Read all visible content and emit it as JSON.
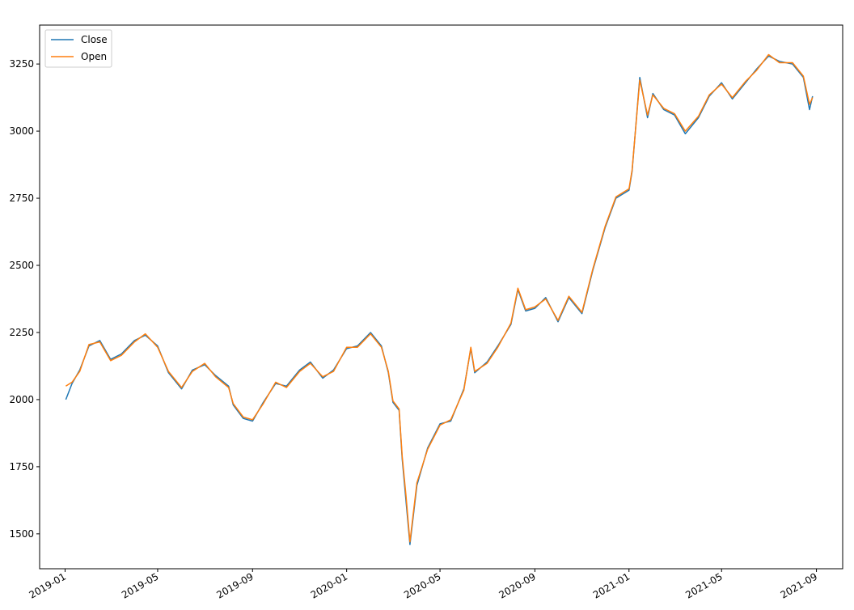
{
  "chart_data": {
    "type": "line",
    "title": "",
    "xlabel": "",
    "ylabel": "",
    "grid": false,
    "legend_position": "top-left",
    "xlim": [
      "2018-11-29",
      "2021-10-05"
    ],
    "ylim": [
      1370,
      3395
    ],
    "x_ticks": [
      "2019-01",
      "2019-05",
      "2019-09",
      "2020-01",
      "2020-05",
      "2020-09",
      "2021-01",
      "2021-05",
      "2021-09"
    ],
    "x_tick_dates": [
      "2019-01-01",
      "2019-05-01",
      "2019-09-01",
      "2020-01-01",
      "2020-05-01",
      "2020-09-01",
      "2021-01-01",
      "2021-05-01",
      "2021-09-01"
    ],
    "y_ticks": [
      1500,
      1750,
      2000,
      2250,
      2500,
      2750,
      3000,
      3250
    ],
    "x": [
      "2019-01-02",
      "2019-01-10",
      "2019-01-20",
      "2019-02-01",
      "2019-02-15",
      "2019-03-01",
      "2019-03-15",
      "2019-04-01",
      "2019-04-15",
      "2019-05-01",
      "2019-05-15",
      "2019-06-01",
      "2019-06-15",
      "2019-07-01",
      "2019-07-15",
      "2019-08-01",
      "2019-08-07",
      "2019-08-20",
      "2019-09-01",
      "2019-09-15",
      "2019-10-01",
      "2019-10-15",
      "2019-11-01",
      "2019-11-15",
      "2019-12-01",
      "2019-12-15",
      "2020-01-01",
      "2020-01-15",
      "2020-02-01",
      "2020-02-15",
      "2020-02-24",
      "2020-03-01",
      "2020-03-09",
      "2020-03-13",
      "2020-03-18",
      "2020-03-23",
      "2020-04-01",
      "2020-04-15",
      "2020-05-01",
      "2020-05-15",
      "2020-06-01",
      "2020-06-10",
      "2020-06-15",
      "2020-07-01",
      "2020-07-15",
      "2020-08-01",
      "2020-08-10",
      "2020-08-20",
      "2020-09-01",
      "2020-09-15",
      "2020-10-01",
      "2020-10-15",
      "2020-11-01",
      "2020-11-15",
      "2020-12-01",
      "2020-12-15",
      "2021-01-01",
      "2021-01-05",
      "2021-01-15",
      "2021-01-25",
      "2021-02-01",
      "2021-02-15",
      "2021-03-01",
      "2021-03-15",
      "2021-04-01",
      "2021-04-15",
      "2021-05-01",
      "2021-05-15",
      "2021-06-01",
      "2021-06-15",
      "2021-07-01",
      "2021-07-15",
      "2021-08-01",
      "2021-08-15",
      "2021-08-23",
      "2021-08-27"
    ],
    "series": [
      {
        "name": "Close",
        "color": "#1f77b4",
        "values": [
          2000,
          2060,
          2110,
          2200,
          2220,
          2150,
          2170,
          2220,
          2240,
          2200,
          2100,
          2040,
          2110,
          2130,
          2090,
          2050,
          1980,
          1930,
          1920,
          1990,
          2060,
          2050,
          2110,
          2140,
          2080,
          2110,
          2190,
          2200,
          2250,
          2200,
          2100,
          1990,
          1960,
          1780,
          1620,
          1460,
          1680,
          1820,
          1910,
          1920,
          2040,
          2190,
          2100,
          2140,
          2200,
          2280,
          2410,
          2330,
          2340,
          2380,
          2290,
          2380,
          2320,
          2480,
          2640,
          2750,
          2780,
          2850,
          3200,
          3050,
          3140,
          3080,
          3060,
          2990,
          3050,
          3130,
          3180,
          3120,
          3180,
          3230,
          3280,
          3260,
          3250,
          3200,
          3080,
          3130
        ]
      },
      {
        "name": "Open",
        "color": "#ff7f0e",
        "values": [
          2050,
          2065,
          2105,
          2205,
          2215,
          2145,
          2165,
          2215,
          2245,
          2195,
          2105,
          2045,
          2105,
          2135,
          2085,
          2045,
          1985,
          1935,
          1925,
          1985,
          2065,
          2045,
          2105,
          2135,
          2085,
          2105,
          2195,
          2195,
          2245,
          2195,
          2105,
          1995,
          1965,
          1790,
          1640,
          1470,
          1690,
          1815,
          1905,
          1925,
          2035,
          2195,
          2105,
          2135,
          2195,
          2285,
          2415,
          2335,
          2345,
          2375,
          2295,
          2385,
          2325,
          2485,
          2645,
          2755,
          2785,
          2855,
          3190,
          3060,
          3135,
          3085,
          3065,
          3000,
          3055,
          3135,
          3175,
          3125,
          3185,
          3225,
          3285,
          3255,
          3255,
          3205,
          3100,
          3125
        ]
      }
    ]
  },
  "legend": [
    {
      "label": "Close",
      "color": "#1f77b4"
    },
    {
      "label": "Open",
      "color": "#ff7f0e"
    }
  ]
}
